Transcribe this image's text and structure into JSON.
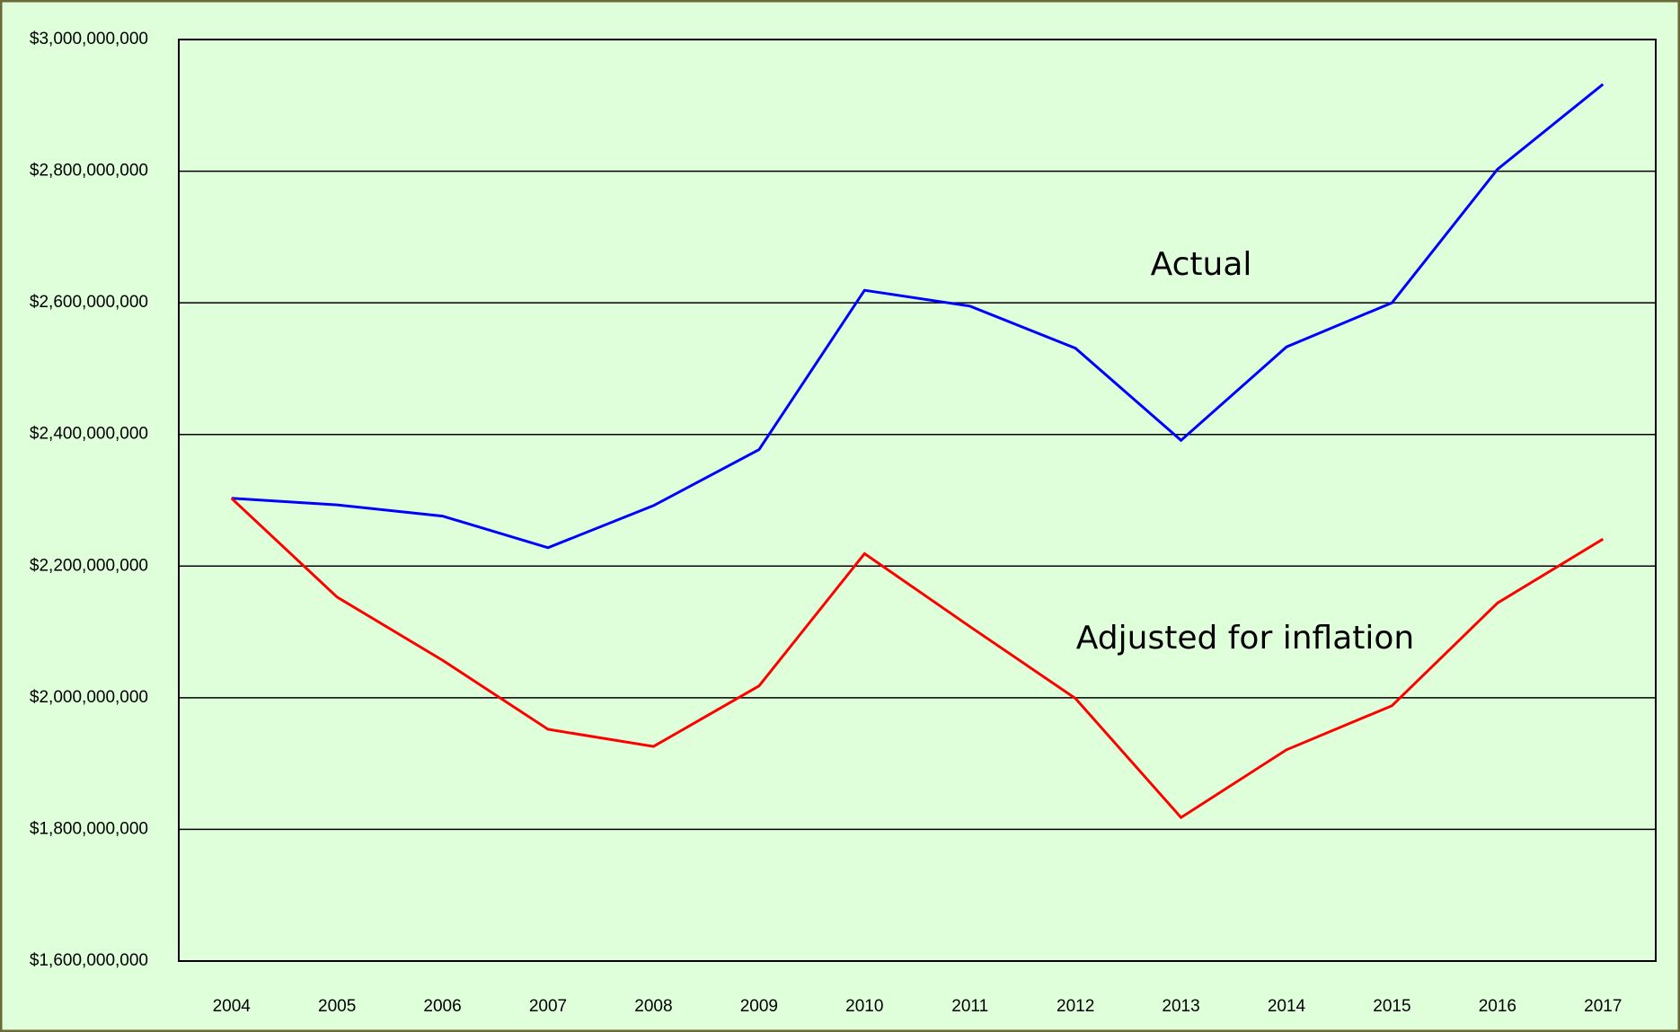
{
  "chart_data": {
    "type": "line",
    "categories": [
      "2004",
      "2005",
      "2006",
      "2007",
      "2008",
      "2009",
      "2010",
      "2011",
      "2012",
      "2013",
      "2014",
      "2015",
      "2016",
      "2017"
    ],
    "series": [
      {
        "name": "Actual",
        "color": "#0000ff",
        "values": [
          2303000000,
          2293000000,
          2276000000,
          2228000000,
          2292000000,
          2377000000,
          2619000000,
          2595000000,
          2531000000,
          2391000000,
          2533000000,
          2600000000,
          2803000000,
          2932000000
        ]
      },
      {
        "name": "Adjusted for inflation",
        "color": "#ff0000",
        "values": [
          2303000000,
          2153000000,
          2057000000,
          1952000000,
          1926000000,
          2018000000,
          2219000000,
          2108000000,
          1999000000,
          1818000000,
          1921000000,
          1988000000,
          2144000000,
          2241000000
        ]
      }
    ],
    "ylim": [
      1600000000,
      3000000000
    ],
    "yticks": [
      {
        "value": 1600000000,
        "label": "$1,600,000,000"
      },
      {
        "value": 1800000000,
        "label": "$1,800,000,000"
      },
      {
        "value": 2000000000,
        "label": "$2,000,000,000"
      },
      {
        "value": 2200000000,
        "label": "$2,200,000,000"
      },
      {
        "value": 2400000000,
        "label": "$2,400,000,000"
      },
      {
        "value": 2600000000,
        "label": "$2,600,000,000"
      },
      {
        "value": 2800000000,
        "label": "$2,800,000,000"
      },
      {
        "value": 3000000000,
        "label": "$3,000,000,000"
      }
    ],
    "grid": true
  }
}
